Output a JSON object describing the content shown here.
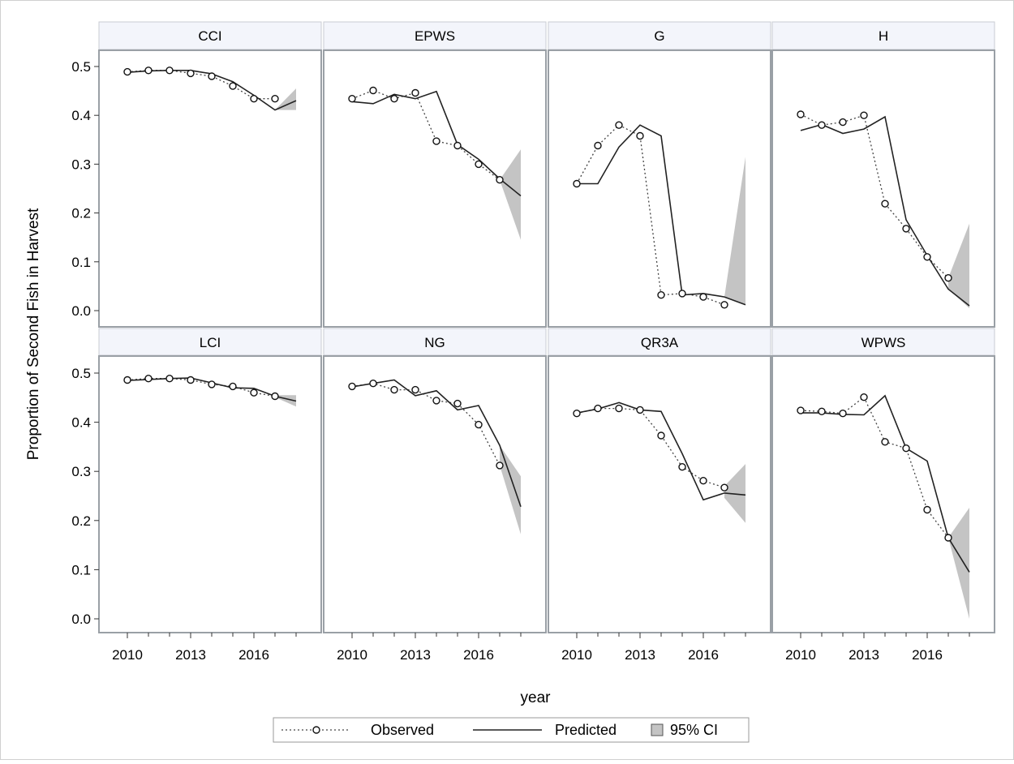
{
  "chart_data": {
    "type": "line",
    "title": "",
    "xlabel": "year",
    "ylabel": "Proportion of Second Fish in Harvest",
    "xlim": [
      2009.3,
      2018.3
    ],
    "ylim": [
      -0.03,
      0.53
    ],
    "xticks": [
      2010,
      2013,
      2016
    ],
    "yticks": [
      0.0,
      0.1,
      0.2,
      0.3,
      0.4,
      0.5
    ],
    "ytick_labels": [
      "0.0",
      "0.1",
      "0.2",
      "0.3",
      "0.4",
      "0.5"
    ],
    "legend": {
      "placement": "bottom-center",
      "items": [
        {
          "key": "observed",
          "label": "Observed",
          "style": "dotted-circles"
        },
        {
          "key": "predicted",
          "label": "Predicted",
          "style": "solid-line"
        },
        {
          "key": "ci",
          "label": "95% CI",
          "style": "gray-band"
        }
      ]
    },
    "colors": {
      "line": "#222222",
      "ci_band": "#c4c4c4",
      "panel_border": "#9aa0a6",
      "header_fill": "#f3f5fb",
      "header_border": "#c9ccd3",
      "grid": "none"
    },
    "panels": [
      {
        "name": "CCI",
        "observed": {
          "x": [
            2010,
            2011,
            2012,
            2013,
            2014,
            2015,
            2016,
            2017
          ],
          "y": [
            0.489,
            0.492,
            0.492,
            0.486,
            0.48,
            0.46,
            0.434,
            0.434
          ]
        },
        "predicted": {
          "x": [
            2010,
            2011,
            2012,
            2013,
            2014,
            2015,
            2016,
            2017,
            2018
          ],
          "y": [
            0.488,
            0.491,
            0.492,
            0.492,
            0.485,
            0.469,
            0.441,
            0.411,
            0.43
          ]
        },
        "ci": {
          "x": [
            2017,
            2018
          ],
          "lower": [
            0.411,
            0.411
          ],
          "upper": [
            0.411,
            0.455
          ]
        }
      },
      {
        "name": "EPWS",
        "observed": {
          "x": [
            2010,
            2011,
            2012,
            2013,
            2014,
            2015,
            2016,
            2017
          ],
          "y": [
            0.434,
            0.451,
            0.434,
            0.446,
            0.347,
            0.338,
            0.3,
            0.268
          ]
        },
        "predicted": {
          "x": [
            2010,
            2011,
            2012,
            2013,
            2014,
            2015,
            2016,
            2017,
            2018
          ],
          "y": [
            0.428,
            0.424,
            0.443,
            0.434,
            0.449,
            0.34,
            0.31,
            0.27,
            0.235
          ]
        },
        "ci": {
          "x": [
            2017,
            2018
          ],
          "lower": [
            0.268,
            0.145
          ],
          "upper": [
            0.268,
            0.33
          ]
        }
      },
      {
        "name": "G",
        "observed": {
          "x": [
            2010,
            2011,
            2012,
            2013,
            2014,
            2015,
            2016,
            2017
          ],
          "y": [
            0.26,
            0.338,
            0.38,
            0.358,
            0.032,
            0.035,
            0.028,
            0.012
          ]
        },
        "predicted": {
          "x": [
            2010,
            2011,
            2012,
            2013,
            2014,
            2015,
            2016,
            2017,
            2018
          ],
          "y": [
            0.26,
            0.26,
            0.335,
            0.38,
            0.358,
            0.032,
            0.035,
            0.028,
            0.012
          ]
        },
        "ci": {
          "x": [
            2017,
            2018
          ],
          "lower": [
            0.028,
            0.012
          ],
          "upper": [
            0.028,
            0.315
          ]
        }
      },
      {
        "name": "H",
        "observed": {
          "x": [
            2010,
            2011,
            2012,
            2013,
            2014,
            2015,
            2016,
            2017
          ],
          "y": [
            0.402,
            0.38,
            0.386,
            0.4,
            0.219,
            0.168,
            0.11,
            0.067
          ]
        },
        "predicted": {
          "x": [
            2010,
            2011,
            2012,
            2013,
            2014,
            2015,
            2016,
            2017,
            2018
          ],
          "y": [
            0.369,
            0.381,
            0.363,
            0.372,
            0.397,
            0.186,
            0.113,
            0.044,
            0.01
          ]
        },
        "ci": {
          "x": [
            2017,
            2018
          ],
          "lower": [
            0.044,
            0.005
          ],
          "upper": [
            0.067,
            0.178
          ]
        }
      },
      {
        "name": "LCI",
        "observed": {
          "x": [
            2010,
            2011,
            2012,
            2013,
            2014,
            2015,
            2016,
            2017
          ],
          "y": [
            0.486,
            0.489,
            0.489,
            0.486,
            0.477,
            0.473,
            0.46,
            0.453
          ]
        },
        "predicted": {
          "x": [
            2010,
            2011,
            2012,
            2013,
            2014,
            2015,
            2016,
            2017,
            2018
          ],
          "y": [
            0.485,
            0.487,
            0.489,
            0.49,
            0.48,
            0.47,
            0.469,
            0.453,
            0.443
          ]
        },
        "ci": {
          "x": [
            2017,
            2018
          ],
          "lower": [
            0.451,
            0.432
          ],
          "upper": [
            0.455,
            0.455
          ]
        }
      },
      {
        "name": "NG",
        "observed": {
          "x": [
            2010,
            2011,
            2012,
            2013,
            2014,
            2015,
            2016,
            2017
          ],
          "y": [
            0.473,
            0.479,
            0.466,
            0.466,
            0.444,
            0.438,
            0.395,
            0.312
          ]
        },
        "predicted": {
          "x": [
            2010,
            2011,
            2012,
            2013,
            2014,
            2015,
            2016,
            2017,
            2018
          ],
          "y": [
            0.472,
            0.479,
            0.486,
            0.454,
            0.464,
            0.425,
            0.434,
            0.353,
            0.228
          ]
        },
        "ci": {
          "x": [
            2017,
            2018
          ],
          "lower": [
            0.312,
            0.172
          ],
          "upper": [
            0.353,
            0.29
          ]
        }
      },
      {
        "name": "QR3A",
        "observed": {
          "x": [
            2010,
            2011,
            2012,
            2013,
            2014,
            2015,
            2016,
            2017
          ],
          "y": [
            0.418,
            0.428,
            0.428,
            0.425,
            0.373,
            0.309,
            0.281,
            0.267
          ]
        },
        "predicted": {
          "x": [
            2010,
            2011,
            2012,
            2013,
            2014,
            2015,
            2016,
            2017,
            2018
          ],
          "y": [
            0.419,
            0.427,
            0.44,
            0.425,
            0.422,
            0.336,
            0.242,
            0.256,
            0.252
          ]
        },
        "ci": {
          "x": [
            2017,
            2018
          ],
          "lower": [
            0.246,
            0.195
          ],
          "upper": [
            0.27,
            0.315
          ]
        }
      },
      {
        "name": "WPWS",
        "observed": {
          "x": [
            2010,
            2011,
            2012,
            2013,
            2014,
            2015,
            2016,
            2017
          ],
          "y": [
            0.424,
            0.422,
            0.418,
            0.451,
            0.36,
            0.347,
            0.222,
            0.165
          ]
        },
        "predicted": {
          "x": [
            2010,
            2011,
            2012,
            2013,
            2014,
            2015,
            2016,
            2017,
            2018
          ],
          "y": [
            0.419,
            0.419,
            0.416,
            0.415,
            0.454,
            0.347,
            0.321,
            0.165,
            0.095
          ]
        },
        "ci": {
          "x": [
            2017,
            2018
          ],
          "lower": [
            0.165,
            0.0
          ],
          "upper": [
            0.165,
            0.226
          ]
        }
      }
    ]
  }
}
